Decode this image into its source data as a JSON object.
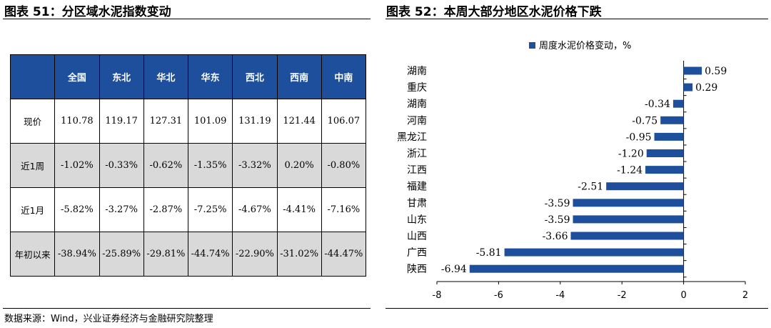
{
  "left_panel": {
    "title": "图表 51：分区域水泥指数变动",
    "table": {
      "headers": [
        "",
        "全国",
        "东北",
        "华北",
        "华东",
        "西北",
        "西南",
        "中南"
      ],
      "rows": [
        {
          "label": "现价",
          "cells": [
            "110.78",
            "119.17",
            "127.31",
            "101.09",
            "131.19",
            "121.44",
            "106.07"
          ]
        },
        {
          "label": "近1周",
          "cells": [
            "-1.02%",
            "-0.33%",
            "-0.62%",
            "-1.35%",
            "-3.32%",
            "0.20%",
            "-0.80%"
          ]
        },
        {
          "label": "近1月",
          "cells": [
            "-5.82%",
            "-3.27%",
            "-2.87%",
            "-7.25%",
            "-4.67%",
            "-4.41%",
            "-7.16%"
          ]
        },
        {
          "label": "年初以来",
          "cells": [
            "-38.94%",
            "-25.89%",
            "-29.81%",
            "-44.74%",
            "-22.90%",
            "-31.02%",
            "-44.47%"
          ]
        }
      ]
    }
  },
  "right_panel": {
    "title": "图表 52：本周大部分地区水泥价格下跌"
  },
  "chart_data": {
    "type": "bar",
    "orientation": "horizontal",
    "categories": [
      "湖南",
      "重庆",
      "湖南",
      "河南",
      "黑龙江",
      "浙江",
      "江西",
      "福建",
      "甘肃",
      "山东",
      "山西",
      "广西",
      "陕西"
    ],
    "series": [
      {
        "name": "周度水泥价格变动，%",
        "values": [
          0.59,
          0.29,
          -0.34,
          -0.75,
          -0.95,
          -1.2,
          -1.24,
          -2.51,
          -3.59,
          -3.59,
          -3.66,
          -5.81,
          -6.94
        ],
        "value_labels": [
          "0.59",
          "0.29",
          "-0.34",
          "-0.75",
          "-0.95",
          "-1.20",
          "-1.24",
          "-2.51",
          "-3.59",
          "-3.59",
          "-3.66",
          "-5.81",
          "-6.94"
        ],
        "color": "#1d4f9c"
      }
    ],
    "xlim": [
      -8,
      2
    ],
    "x_ticks": [
      -8,
      -6,
      -4,
      -2,
      0,
      2
    ],
    "legend_position": "top",
    "grid": false
  },
  "source": "数据来源：Wind，兴业证券经济与金融研究院整理"
}
